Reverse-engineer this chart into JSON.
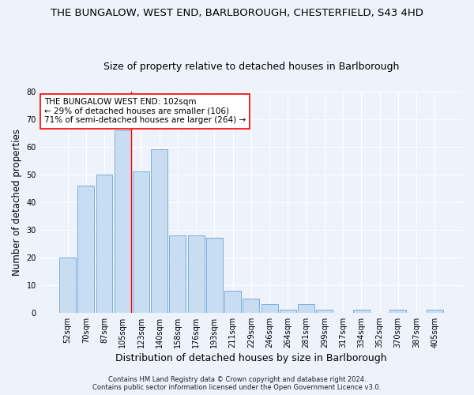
{
  "title": "THE BUNGALOW, WEST END, BARLBOROUGH, CHESTERFIELD, S43 4HD",
  "subtitle": "Size of property relative to detached houses in Barlborough",
  "xlabel": "Distribution of detached houses by size in Barlborough",
  "ylabel": "Number of detached properties",
  "categories": [
    "52sqm",
    "70sqm",
    "87sqm",
    "105sqm",
    "123sqm",
    "140sqm",
    "158sqm",
    "176sqm",
    "193sqm",
    "211sqm",
    "229sqm",
    "246sqm",
    "264sqm",
    "281sqm",
    "299sqm",
    "317sqm",
    "334sqm",
    "352sqm",
    "370sqm",
    "387sqm",
    "405sqm"
  ],
  "bar_heights": [
    20,
    46,
    50,
    66,
    51,
    59,
    28,
    28,
    27,
    8,
    5,
    3,
    1,
    3,
    1,
    0,
    1,
    0,
    1,
    0,
    1
  ],
  "bar_color": "#c9ddf2",
  "bar_edge_color": "#7aaed6",
  "vline_x_index": 3,
  "vline_color": "red",
  "annotation_line1": "THE BUNGALOW WEST END: 102sqm",
  "annotation_line2": "← 29% of detached houses are smaller (106)",
  "annotation_line3": "71% of semi-detached houses are larger (264) →",
  "annotation_box_color": "white",
  "annotation_box_edge": "red",
  "ylim": [
    0,
    80
  ],
  "yticks": [
    0,
    10,
    20,
    30,
    40,
    50,
    60,
    70,
    80
  ],
  "background_color": "#eef2fb",
  "plot_bg_color": "#eef2fb",
  "footer": "Contains HM Land Registry data © Crown copyright and database right 2024.\nContains public sector information licensed under the Open Government Licence v3.0.",
  "title_fontsize": 9.5,
  "subtitle_fontsize": 9,
  "xlabel_fontsize": 9,
  "ylabel_fontsize": 8.5,
  "tick_fontsize": 7,
  "annotation_fontsize": 7.5,
  "footer_fontsize": 6
}
